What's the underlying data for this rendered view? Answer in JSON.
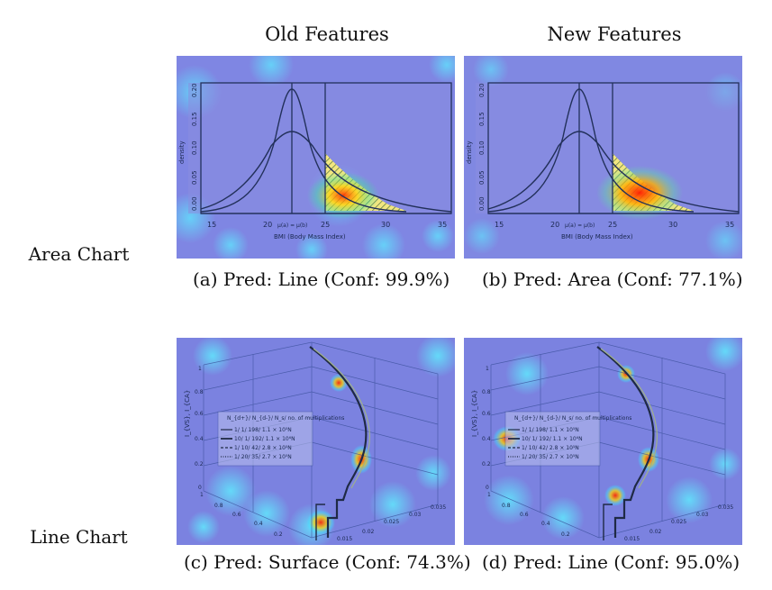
{
  "columns": {
    "old": "Old Features",
    "new": "New Features"
  },
  "rows": {
    "area": "Area Chart",
    "line": "Line Chart"
  },
  "captions": {
    "a": "(a) Pred: Line (Conf: 99.9%)",
    "b": "(b) Pred: Area (Conf: 77.1%)",
    "c": "(c) Pred: Surface (Conf: 74.3%)",
    "d": "(d) Pred: Line (Conf: 95.0%)"
  },
  "area_chart": {
    "ylabel": "density",
    "xlabel": "BMI (Body Mass Index)",
    "x_ticks": [
      "15",
      "20",
      "25",
      "30",
      "35"
    ],
    "y_ticks": [
      "0.00",
      "0.05",
      "0.10",
      "0.15",
      "0.20"
    ],
    "mu_label": "μ(a) = μ(b)"
  },
  "line_chart": {
    "zlabel": "I_{VS}, I_{CA}",
    "legend_title": "N_{d+}/ N_{d-}/ N_s/ no. of multiplications",
    "legend_items": [
      "1/ 1/ 198/ 1.1 × 10⁵N",
      "10/ 1/ 192/ 1.1 × 10⁶N",
      "1/ 10/ 42/ 2.8 × 10⁵N",
      "1/ 20/ 35/ 2.7 × 10⁵N"
    ],
    "z_ticks": [
      "0",
      "0.2",
      "0.4",
      "0.6",
      "0.8",
      "1"
    ],
    "x_ticks": [
      "0.015",
      "0.02",
      "0.025",
      "0.03",
      "0.035"
    ],
    "y_ticks": [
      "0.2",
      "0.4",
      "0.6",
      "0.8",
      "1"
    ]
  }
}
